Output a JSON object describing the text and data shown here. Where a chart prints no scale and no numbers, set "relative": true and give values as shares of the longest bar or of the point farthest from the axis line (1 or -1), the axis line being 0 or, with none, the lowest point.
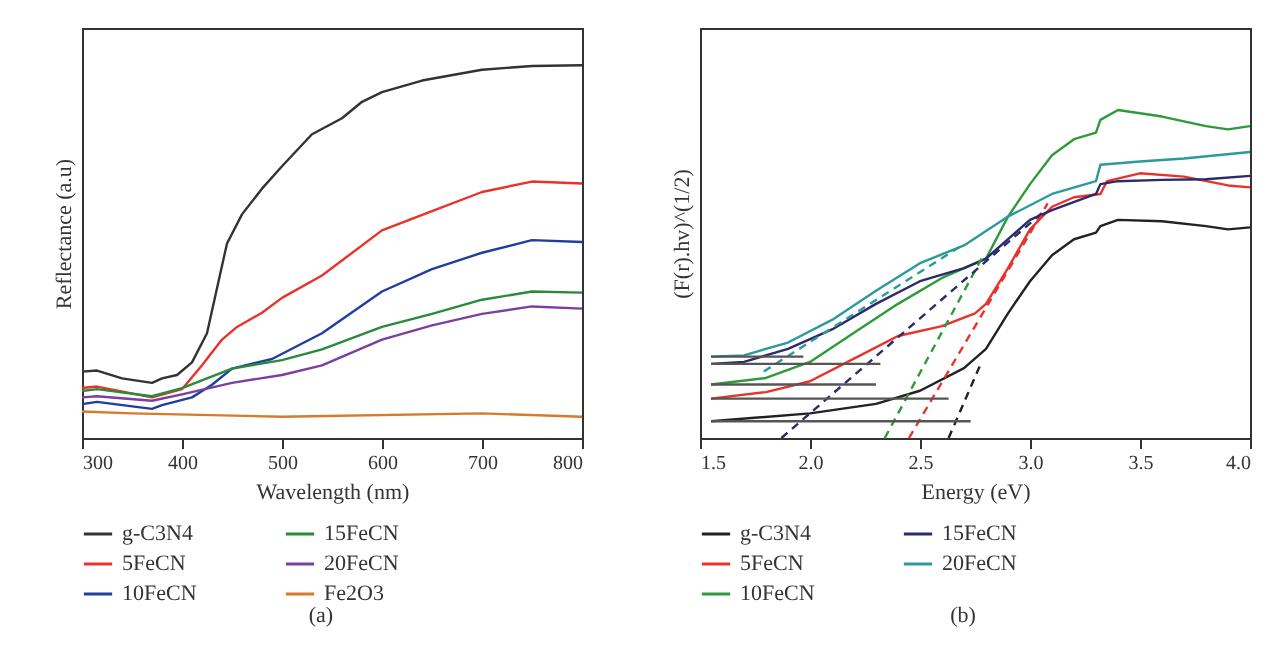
{
  "chart_data": [
    {
      "type": "line",
      "relative": true,
      "xlabel": "Wavelength (nm)",
      "ylabel": "Reflectance (a.u)",
      "xlim": [
        300,
        800
      ],
      "xticks": [
        300,
        400,
        500,
        600,
        700,
        800
      ],
      "tick_labels": "x",
      "legend": "bottom",
      "annotations": [
        "(a)"
      ],
      "series": [
        {
          "name": "g-C3N4",
          "color": "#333333",
          "x": [
            300,
            315,
            340,
            370,
            380,
            395,
            410,
            425,
            435,
            445,
            460,
            480,
            500,
            530,
            560,
            580,
            600,
            640,
            700,
            750,
            800
          ],
          "values": [
            0.178,
            0.181,
            0.16,
            0.148,
            0.16,
            0.169,
            0.203,
            0.281,
            0.402,
            0.522,
            0.6,
            0.669,
            0.729,
            0.815,
            0.858,
            0.902,
            0.928,
            0.959,
            0.988,
            0.998,
            1.0
          ]
        },
        {
          "name": "5FeCN",
          "color": "#e8322c",
          "x": [
            300,
            315,
            370,
            400,
            420,
            440,
            455,
            480,
            500,
            540,
            600,
            650,
            700,
            750,
            800
          ],
          "values": [
            0.134,
            0.138,
            0.109,
            0.131,
            0.195,
            0.264,
            0.298,
            0.336,
            0.376,
            0.436,
            0.557,
            0.609,
            0.66,
            0.688,
            0.683
          ]
        },
        {
          "name": "10FeCN",
          "color": "#1f3fa0",
          "x": [
            300,
            315,
            370,
            380,
            410,
            430,
            450,
            490,
            540,
            600,
            650,
            700,
            750,
            800
          ],
          "values": [
            0.091,
            0.097,
            0.078,
            0.088,
            0.109,
            0.143,
            0.186,
            0.212,
            0.281,
            0.393,
            0.453,
            0.497,
            0.531,
            0.526
          ]
        },
        {
          "name": "15FeCN",
          "color": "#2a8a3a",
          "x": [
            300,
            315,
            370,
            400,
            450,
            500,
            540,
            600,
            650,
            700,
            750,
            800
          ],
          "values": [
            0.126,
            0.131,
            0.112,
            0.134,
            0.186,
            0.209,
            0.238,
            0.298,
            0.333,
            0.371,
            0.393,
            0.39
          ]
        },
        {
          "name": "20FeCN",
          "color": "#7b3fa0",
          "x": [
            300,
            315,
            370,
            400,
            450,
            500,
            540,
            600,
            650,
            700,
            750,
            800
          ],
          "values": [
            0.109,
            0.112,
            0.1,
            0.117,
            0.148,
            0.169,
            0.195,
            0.264,
            0.302,
            0.333,
            0.353,
            0.347
          ]
        },
        {
          "name": "Fe2O3",
          "color": "#d9792a",
          "x": [
            300,
            350,
            500,
            700,
            800
          ],
          "values": [
            0.071,
            0.066,
            0.057,
            0.066,
            0.057
          ]
        }
      ]
    },
    {
      "type": "line",
      "relative": true,
      "xlabel": "Energy (eV)",
      "ylabel": "(F(r).hv)^(1/2)",
      "xlim": [
        1.5,
        4.0
      ],
      "xticks": [
        {
          "value": 1.5,
          "label": "1.5"
        },
        {
          "value": 2,
          "label": "2.0"
        },
        {
          "value": 2.5,
          "label": "2.5"
        },
        {
          "value": 3,
          "label": "3.0"
        },
        {
          "value": 3.5,
          "label": "3.5"
        },
        {
          "value": 4,
          "label": "4.0"
        }
      ],
      "tick_labels": "x",
      "legend": "bottom",
      "annotations": [
        "(b)"
      ],
      "series": [
        {
          "name": "g-C3N4",
          "color": "#222222",
          "x": [
            1.55,
            2.0,
            2.3,
            2.5,
            2.7,
            2.8,
            2.9,
            3.0,
            3.1,
            3.2,
            3.3,
            3.32,
            3.4,
            3.6,
            3.8,
            3.9,
            4.0
          ],
          "values": [
            0.051,
            0.075,
            0.104,
            0.144,
            0.213,
            0.272,
            0.38,
            0.478,
            0.557,
            0.606,
            0.626,
            0.646,
            0.665,
            0.661,
            0.646,
            0.636,
            0.642
          ]
        },
        {
          "name": "5FeCN",
          "color": "#e8322c",
          "x": [
            1.55,
            1.8,
            2.0,
            2.2,
            2.4,
            2.6,
            2.75,
            2.8,
            2.9,
            3.0,
            3.1,
            3.2,
            3.32,
            3.35,
            3.5,
            3.7,
            3.9,
            4.0
          ],
          "values": [
            0.12,
            0.14,
            0.173,
            0.242,
            0.311,
            0.341,
            0.38,
            0.409,
            0.518,
            0.636,
            0.705,
            0.734,
            0.744,
            0.783,
            0.807,
            0.797,
            0.77,
            0.764
          ]
        },
        {
          "name": "10FeCN",
          "color": "#2f9a3a",
          "x": [
            1.55,
            1.8,
            2.0,
            2.2,
            2.4,
            2.6,
            2.8,
            2.9,
            3.0,
            3.1,
            3.2,
            3.3,
            3.32,
            3.4,
            3.6,
            3.8,
            3.9,
            4.0
          ],
          "values": [
            0.163,
            0.183,
            0.232,
            0.321,
            0.409,
            0.488,
            0.547,
            0.675,
            0.774,
            0.862,
            0.911,
            0.931,
            0.97,
            1.0,
            0.98,
            0.951,
            0.941,
            0.951
          ]
        },
        {
          "name": "15FeCN",
          "color": "#2b2b6b",
          "x": [
            1.55,
            1.7,
            1.9,
            2.1,
            2.3,
            2.5,
            2.7,
            2.8,
            3.0,
            3.1,
            3.3,
            3.32,
            3.4,
            3.6,
            3.8,
            4.0
          ],
          "values": [
            0.226,
            0.232,
            0.272,
            0.331,
            0.409,
            0.478,
            0.518,
            0.547,
            0.665,
            0.695,
            0.744,
            0.774,
            0.783,
            0.787,
            0.789,
            0.799
          ]
        },
        {
          "name": "20FeCN",
          "color": "#2a9a9a",
          "x": [
            1.55,
            1.7,
            1.9,
            2.1,
            2.3,
            2.5,
            2.7,
            2.9,
            3.1,
            3.3,
            3.32,
            3.5,
            3.7,
            4.0
          ],
          "values": [
            0.248,
            0.252,
            0.291,
            0.36,
            0.449,
            0.533,
            0.587,
            0.675,
            0.744,
            0.783,
            0.833,
            0.843,
            0.852,
            0.872
          ]
        },
        {
          "type": "line",
          "color": "#222222",
          "line_style": "dashed",
          "x": [
            2.63,
            2.78
          ],
          "values": [
            0.0,
            0.232
          ]
        },
        {
          "type": "line",
          "color": "#e8322c",
          "line_style": "dashed",
          "x": [
            2.45,
            3.08
          ],
          "values": [
            0.0,
            0.715
          ]
        },
        {
          "type": "line",
          "color": "#2f9a3a",
          "line_style": "dashed",
          "x": [
            2.34,
            2.78
          ],
          "values": [
            0.0,
            0.547
          ]
        },
        {
          "type": "line",
          "color": "#2b2b6b",
          "line_style": "dashed",
          "x": [
            1.87,
            3.07
          ],
          "values": [
            0.0,
            0.695
          ]
        },
        {
          "type": "line",
          "color": "#2a9a9a",
          "line_style": "dashed",
          "x": [
            1.79,
            2.69
          ],
          "values": [
            0.203,
            0.587
          ]
        },
        {
          "type": "line",
          "color": "#555555",
          "line_style": "solid",
          "x": [
            1.55,
            1.97
          ],
          "values": [
            0.248,
            0.248
          ]
        },
        {
          "type": "line",
          "color": "#555555",
          "line_style": "solid",
          "x": [
            1.55,
            2.32
          ],
          "values": [
            0.226,
            0.226
          ]
        },
        {
          "type": "line",
          "color": "#555555",
          "line_style": "solid",
          "x": [
            1.55,
            2.3
          ],
          "values": [
            0.163,
            0.163
          ]
        },
        {
          "type": "line",
          "color": "#555555",
          "line_style": "solid",
          "x": [
            1.55,
            2.63
          ],
          "values": [
            0.12,
            0.12
          ]
        },
        {
          "type": "line",
          "color": "#555555",
          "line_style": "solid",
          "x": [
            1.55,
            2.73
          ],
          "values": [
            0.051,
            0.051
          ]
        }
      ]
    }
  ]
}
